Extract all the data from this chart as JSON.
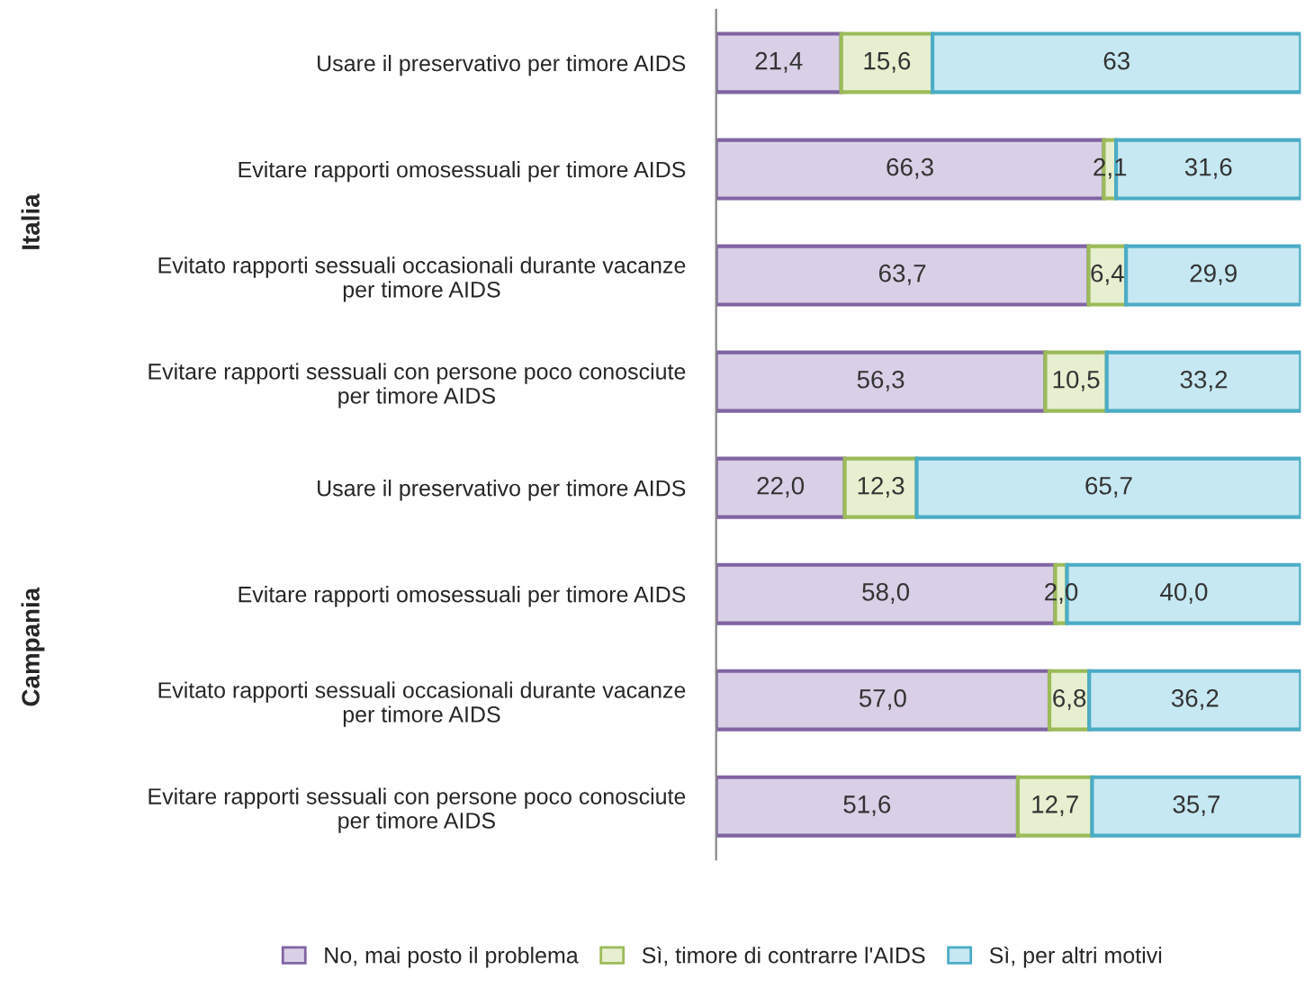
{
  "chart_data": {
    "type": "bar",
    "orientation": "horizontal",
    "stacked": true,
    "categories": [
      "Usare il preservativo per timore AIDS",
      "Evitare rapporti omosessuali per timore AIDS",
      "Evitato rapporti sessuali occasionali durante vacanze per timore AIDS",
      "Evitare rapporti sessuali con persone poco conosciute per timore AIDS",
      "Usare il preservativo per timore AIDS",
      "Evitare rapporti omosessuali per timore AIDS",
      "Evitato rapporti sessuali occasionali durante vacanze per timore AIDS",
      "Evitare rapporti sessuali con persone poco conosciute per timore AIDS"
    ],
    "series": [
      {
        "name": "No, mai posto il problema",
        "color": "#d9cfe6",
        "values": [
          21.4,
          66.3,
          63.7,
          56.3,
          22.0,
          58.0,
          57.0,
          51.6
        ],
        "value_labels": [
          "21,4",
          "66,3",
          "63,7",
          "56,3",
          "22,0",
          "58,0",
          "57,0",
          "51,6"
        ]
      },
      {
        "name": "Sì, timore di contrarre l'AIDS",
        "color": "#e6efcf",
        "values": [
          15.6,
          2.1,
          6.4,
          10.5,
          12.3,
          2.0,
          6.8,
          12.7
        ],
        "value_labels": [
          "15,6",
          "2,1",
          "6,4",
          "10,5",
          "12,3",
          "2,0",
          "6,8",
          "12,7"
        ]
      },
      {
        "name": "Sì, per altri motivi",
        "color": "#c6e8f2",
        "values": [
          63,
          31.6,
          29.9,
          33.2,
          65.7,
          40.0,
          36.2,
          35.7
        ],
        "value_labels": [
          "63",
          "31,6",
          "29,9",
          "33,2",
          "65,7",
          "40,0",
          "36,2",
          "35,7"
        ]
      }
    ],
    "annotations": [
      "Italia",
      "Campania"
    ],
    "legend": "bottom"
  }
}
